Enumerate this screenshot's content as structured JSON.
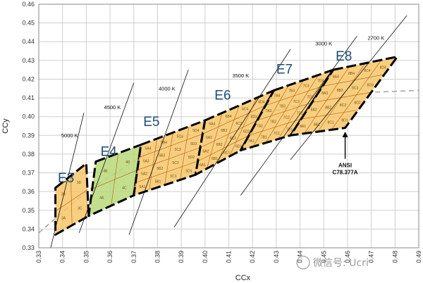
{
  "chart_data": {
    "type": "scatter",
    "title": "",
    "xlabel": "CCx",
    "ylabel": "CCy",
    "xlim": [
      0.33,
      0.49
    ],
    "ylim": [
      0.33,
      0.46
    ],
    "x_ticks": [
      0.33,
      0.34,
      0.35,
      0.36,
      0.37,
      0.38,
      0.39,
      0.4,
      0.41,
      0.42,
      0.43,
      0.44,
      0.45,
      0.46,
      0.47,
      0.48,
      0.49
    ],
    "x_tick_labels": [
      "0.33",
      "0.34",
      "0.35",
      "0.36",
      "0.37",
      "0.38",
      "0.39",
      "0.40",
      "0.41",
      "0.42",
      "0.43",
      "0.44",
      "0.45",
      "0.46",
      "0.47",
      "0.48",
      "0.49"
    ],
    "y_ticks": [
      0.33,
      0.34,
      0.35,
      0.36,
      0.37,
      0.38,
      0.39,
      0.4,
      0.41,
      0.42,
      0.43,
      0.44,
      0.45,
      0.46
    ],
    "y_tick_labels": [
      "0.33",
      "0.34",
      "0.35",
      "0.36",
      "0.37",
      "0.38",
      "0.39",
      "0.40",
      "0.41",
      "0.42",
      "0.43",
      "0.44",
      "0.45",
      "0.46"
    ],
    "grid": true,
    "planckian_locus": [
      [
        0.33,
        0.338
      ],
      [
        0.35,
        0.36
      ],
      [
        0.38,
        0.384
      ],
      [
        0.41,
        0.398
      ],
      [
        0.44,
        0.406
      ],
      [
        0.47,
        0.413
      ],
      [
        0.49,
        0.414
      ]
    ],
    "cct_lines": [
      {
        "label": "5000 K",
        "start": [
          0.335,
          0.33
        ],
        "end": [
          0.349,
          0.402
        ]
      },
      {
        "label": "4500 K",
        "start": [
          0.347,
          0.338
        ],
        "end": [
          0.37,
          0.418
        ]
      },
      {
        "label": "4000 K",
        "start": [
          0.368,
          0.337
        ],
        "end": [
          0.393,
          0.425
        ]
      },
      {
        "label": "3500 K",
        "start": [
          0.387,
          0.341
        ],
        "end": [
          0.436,
          0.436
        ]
      },
      {
        "label": "3000 K",
        "start": [
          0.415,
          0.358
        ],
        "end": [
          0.464,
          0.443
        ]
      },
      {
        "label": "2700 K",
        "start": [
          0.436,
          0.377
        ],
        "end": [
          0.485,
          0.454
        ]
      }
    ],
    "cct_label_positions": [
      [
        0.343,
        0.389
      ],
      [
        0.361,
        0.404
      ],
      [
        0.384,
        0.414
      ],
      [
        0.415,
        0.421
      ],
      [
        0.45,
        0.438
      ],
      [
        0.472,
        0.441
      ]
    ],
    "regions": [
      {
        "label": "E3",
        "fill": "#f7c76b",
        "corners": [
          [
            0.337,
            0.362
          ],
          [
            0.35,
            0.375
          ],
          [
            0.351,
            0.347
          ],
          [
            0.337,
            0.337
          ]
        ],
        "cells": [
          "3A",
          "3B",
          "3C",
          "3D"
        ]
      },
      {
        "label": "E4",
        "fill": "#b9d97a",
        "corners": [
          [
            0.354,
            0.376
          ],
          [
            0.373,
            0.385
          ],
          [
            0.37,
            0.358
          ],
          [
            0.351,
            0.347
          ]
        ],
        "cells": [
          "4A",
          "4B",
          "4C",
          "4D"
        ]
      },
      {
        "label": "E5",
        "fill": "#f7c76b",
        "corners": [
          [
            0.373,
            0.385
          ],
          [
            0.4,
            0.398
          ],
          [
            0.396,
            0.369
          ],
          [
            0.37,
            0.358
          ]
        ],
        "cells": [
          "5A1",
          "5A2",
          "5A3",
          "5A4",
          "5B1",
          "5B2",
          "5B3",
          "5B4",
          "5C1",
          "5C2",
          "5C3",
          "5C4",
          "5D1",
          "5D2",
          "5D3",
          "5D4"
        ]
      },
      {
        "label": "E6",
        "fill": "#f7c76b",
        "corners": [
          [
            0.4,
            0.398
          ],
          [
            0.429,
            0.414
          ],
          [
            0.415,
            0.382
          ],
          [
            0.396,
            0.369
          ]
        ],
        "cells": [
          "6A1",
          "6A2",
          "6A3",
          "6A4",
          "6B1",
          "6B2",
          "6B3",
          "6B4",
          "6C1",
          "6C2",
          "6C3",
          "6C4",
          "6D1",
          "6D2",
          "6D3",
          "6D4"
        ]
      },
      {
        "label": "E7",
        "fill": "#f7c76b",
        "corners": [
          [
            0.429,
            0.414
          ],
          [
            0.454,
            0.425
          ],
          [
            0.436,
            0.39
          ],
          [
            0.415,
            0.382
          ]
        ],
        "cells": [
          "7A1",
          "7A2",
          "7A3",
          "7A4",
          "7B1",
          "7B2",
          "7B3",
          "7B4",
          "7C1",
          "7C2",
          "7C3",
          "7C4",
          "7D1",
          "7D2",
          "7D3",
          "7D4"
        ]
      },
      {
        "label": "E8",
        "fill": "#f7c76b",
        "corners": [
          [
            0.454,
            0.425
          ],
          [
            0.481,
            0.432
          ],
          [
            0.459,
            0.394
          ],
          [
            0.436,
            0.39
          ]
        ],
        "cells": [
          "8A1",
          "8A2",
          "8A3",
          "8A4",
          "8B1",
          "8B2",
          "8B3",
          "8B4",
          "8C1",
          "8C2",
          "8C3",
          "8C4",
          "8D1",
          "8D2",
          "8D3",
          "8D4"
        ]
      }
    ],
    "region_label_positions": [
      [
        0.338,
        0.365
      ],
      [
        0.356,
        0.379
      ],
      [
        0.374,
        0.395
      ],
      [
        0.404,
        0.409
      ],
      [
        0.43,
        0.423
      ],
      [
        0.455,
        0.43
      ]
    ],
    "annotation": {
      "text_line1": "ANSI",
      "text_line2": "C78.377A",
      "arrow_tip": [
        0.459,
        0.392
      ],
      "text_position": [
        0.459,
        0.373
      ]
    }
  },
  "watermark": {
    "text": "微信号: Ucri"
  },
  "colors": {
    "grid": "#cfcfcf",
    "border": "#888888",
    "boundary": "#000000",
    "cell_line": "#b45f06",
    "locus": "#a8a8a8"
  }
}
